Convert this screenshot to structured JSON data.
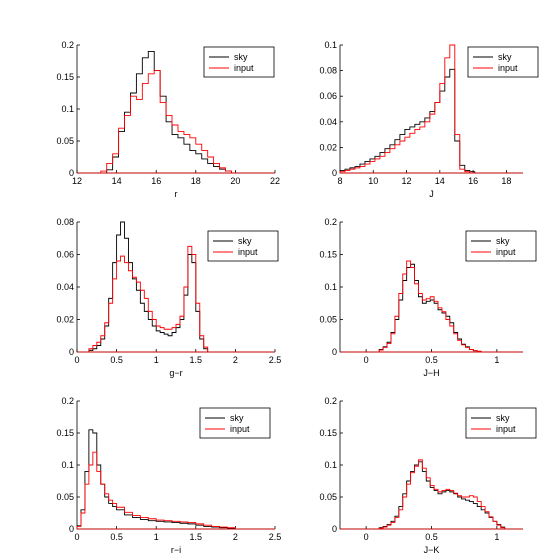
{
  "legend_labels": [
    "sky",
    "input"
  ],
  "colors": {
    "sky": "#000000",
    "input": "#ff0000"
  },
  "chart_data": [
    {
      "type": "line",
      "step": true,
      "xlabel": "r",
      "ylabel": "",
      "xlim": [
        12,
        22
      ],
      "ylim": [
        0,
        0.2
      ],
      "xticks": [
        12,
        14,
        16,
        18,
        20,
        22
      ],
      "xtick_labels": [
        "12",
        "14",
        "16",
        "18",
        "20",
        "22"
      ],
      "yticks": [
        0,
        0.05,
        0.1,
        0.15,
        0.2
      ],
      "ytick_labels": [
        "0",
        "0.05",
        "0.1",
        "0.15",
        "0.2"
      ],
      "legend_position": "top-right",
      "series": [
        {
          "name": "sky",
          "bin_edges": [
            13.5,
            13.8,
            14.1,
            14.4,
            14.7,
            15.0,
            15.3,
            15.6,
            15.9,
            16.2,
            16.5,
            16.8,
            17.1,
            17.4,
            17.7,
            18.0,
            18.3,
            18.6,
            18.9,
            19.2,
            19.5,
            19.8
          ],
          "values": [
            0.005,
            0.025,
            0.065,
            0.095,
            0.125,
            0.155,
            0.18,
            0.19,
            0.16,
            0.12,
            0.08,
            0.06,
            0.055,
            0.045,
            0.035,
            0.03,
            0.022,
            0.015,
            0.01,
            0.006,
            0.003
          ]
        },
        {
          "name": "input",
          "bin_edges": [
            13.2,
            13.5,
            13.8,
            14.1,
            14.4,
            14.7,
            15.0,
            15.3,
            15.6,
            15.9,
            16.2,
            16.5,
            16.8,
            17.1,
            17.4,
            17.7,
            18.0,
            18.3,
            18.6,
            18.9,
            19.2,
            19.5,
            19.8
          ],
          "values": [
            0.003,
            0.015,
            0.03,
            0.07,
            0.09,
            0.12,
            0.115,
            0.14,
            0.155,
            0.16,
            0.11,
            0.09,
            0.075,
            0.065,
            0.06,
            0.055,
            0.045,
            0.035,
            0.025,
            0.015,
            0.008,
            0.003
          ]
        }
      ]
    },
    {
      "type": "line",
      "step": true,
      "xlabel": "J",
      "ylabel": "",
      "xlim": [
        8,
        19
      ],
      "ylim": [
        0,
        0.1
      ],
      "xticks": [
        8,
        10,
        12,
        14,
        16,
        18
      ],
      "xtick_labels": [
        "8",
        "10",
        "12",
        "14",
        "16",
        "18"
      ],
      "yticks": [
        0,
        0.02,
        0.04,
        0.06,
        0.08,
        0.1
      ],
      "ytick_labels": [
        "0",
        "0.02",
        "0.04",
        "0.06",
        "0.08",
        "0.1"
      ],
      "legend_position": "top-right",
      "series": [
        {
          "name": "sky",
          "bin_edges": [
            8.0,
            8.3,
            8.6,
            8.9,
            9.2,
            9.5,
            9.8,
            10.1,
            10.4,
            10.7,
            11.0,
            11.3,
            11.6,
            11.9,
            12.2,
            12.5,
            12.8,
            13.1,
            13.4,
            13.7,
            14.0,
            14.3,
            14.6,
            14.9,
            15.2,
            15.5,
            15.8,
            16.1
          ],
          "values": [
            0.002,
            0.003,
            0.004,
            0.005,
            0.007,
            0.009,
            0.011,
            0.013,
            0.016,
            0.019,
            0.022,
            0.026,
            0.03,
            0.034,
            0.036,
            0.038,
            0.04,
            0.043,
            0.048,
            0.055,
            0.064,
            0.075,
            0.081,
            0.025,
            0.006,
            0.002,
            0.001
          ]
        },
        {
          "name": "input",
          "bin_edges": [
            8.0,
            8.3,
            8.6,
            8.9,
            9.2,
            9.5,
            9.8,
            10.1,
            10.4,
            10.7,
            11.0,
            11.3,
            11.6,
            11.9,
            12.2,
            12.5,
            12.8,
            13.1,
            13.4,
            13.7,
            14.0,
            14.3,
            14.6,
            14.9,
            15.2,
            15.5,
            15.8,
            16.1
          ],
          "values": [
            0.001,
            0.002,
            0.003,
            0.004,
            0.005,
            0.007,
            0.009,
            0.011,
            0.013,
            0.016,
            0.019,
            0.022,
            0.025,
            0.028,
            0.031,
            0.034,
            0.036,
            0.04,
            0.046,
            0.055,
            0.07,
            0.09,
            0.1,
            0.03,
            0.003,
            0.001,
            0.0
          ]
        }
      ]
    },
    {
      "type": "line",
      "step": true,
      "xlabel": "g−r",
      "ylabel": "",
      "xlim": [
        0,
        2.5
      ],
      "ylim": [
        0,
        0.08
      ],
      "xticks": [
        0,
        0.5,
        1,
        1.5,
        2,
        2.5
      ],
      "xtick_labels": [
        "0",
        "0.5",
        "1",
        "1.5",
        "2",
        "2.5"
      ],
      "yticks": [
        0,
        0.02,
        0.04,
        0.06,
        0.08
      ],
      "ytick_labels": [
        "0",
        "0.02",
        "0.04",
        "0.06",
        "0.08"
      ],
      "legend_position": "top-right",
      "series": [
        {
          "name": "sky",
          "bin_edges": [
            0.15,
            0.2,
            0.25,
            0.3,
            0.35,
            0.4,
            0.45,
            0.5,
            0.55,
            0.6,
            0.65,
            0.7,
            0.75,
            0.8,
            0.85,
            0.9,
            0.95,
            1.0,
            1.05,
            1.1,
            1.15,
            1.2,
            1.25,
            1.3,
            1.35,
            1.4,
            1.45,
            1.5,
            1.55,
            1.6,
            1.65
          ],
          "values": [
            0.001,
            0.002,
            0.004,
            0.008,
            0.016,
            0.033,
            0.055,
            0.072,
            0.08,
            0.07,
            0.055,
            0.045,
            0.038,
            0.03,
            0.025,
            0.02,
            0.016,
            0.013,
            0.012,
            0.011,
            0.01,
            0.012,
            0.015,
            0.02,
            0.035,
            0.06,
            0.055,
            0.025,
            0.008,
            0.002
          ]
        },
        {
          "name": "input",
          "bin_edges": [
            0.15,
            0.2,
            0.25,
            0.3,
            0.35,
            0.4,
            0.45,
            0.5,
            0.55,
            0.6,
            0.65,
            0.7,
            0.75,
            0.8,
            0.85,
            0.9,
            0.95,
            1.0,
            1.05,
            1.1,
            1.15,
            1.2,
            1.25,
            1.3,
            1.35,
            1.4,
            1.45,
            1.5,
            1.55,
            1.6,
            1.65
          ],
          "values": [
            0.002,
            0.004,
            0.006,
            0.01,
            0.018,
            0.03,
            0.045,
            0.056,
            0.059,
            0.055,
            0.05,
            0.046,
            0.043,
            0.038,
            0.033,
            0.025,
            0.02,
            0.016,
            0.015,
            0.014,
            0.014,
            0.015,
            0.017,
            0.022,
            0.04,
            0.065,
            0.06,
            0.03,
            0.01,
            0.003
          ]
        }
      ]
    },
    {
      "type": "line",
      "step": true,
      "xlabel": "J−H",
      "ylabel": "",
      "xlim": [
        -0.2,
        1.2
      ],
      "ylim": [
        0,
        0.2
      ],
      "xticks": [
        0,
        0.5,
        1
      ],
      "xtick_labels": [
        "0",
        "0.5",
        "1"
      ],
      "yticks": [
        0,
        0.05,
        0.1,
        0.15,
        0.2
      ],
      "ytick_labels": [
        "0",
        "0.05",
        "0.1",
        "0.15",
        "0.2"
      ],
      "legend_position": "top-right",
      "series": [
        {
          "name": "sky",
          "bin_edges": [
            0.1,
            0.13,
            0.16,
            0.19,
            0.22,
            0.25,
            0.28,
            0.31,
            0.34,
            0.37,
            0.4,
            0.43,
            0.46,
            0.49,
            0.52,
            0.55,
            0.58,
            0.61,
            0.64,
            0.67,
            0.7,
            0.73,
            0.76,
            0.79,
            0.82,
            0.85,
            0.88
          ],
          "values": [
            0.004,
            0.008,
            0.015,
            0.03,
            0.05,
            0.08,
            0.11,
            0.13,
            0.135,
            0.11,
            0.085,
            0.075,
            0.078,
            0.08,
            0.075,
            0.065,
            0.06,
            0.055,
            0.045,
            0.03,
            0.02,
            0.012,
            0.008,
            0.004,
            0.002,
            0.001
          ]
        },
        {
          "name": "input",
          "bin_edges": [
            0.1,
            0.13,
            0.16,
            0.19,
            0.22,
            0.25,
            0.28,
            0.31,
            0.34,
            0.37,
            0.4,
            0.43,
            0.46,
            0.49,
            0.52,
            0.55,
            0.58,
            0.61,
            0.64,
            0.67,
            0.7,
            0.73,
            0.76,
            0.79,
            0.82,
            0.85,
            0.88
          ],
          "values": [
            0.003,
            0.007,
            0.013,
            0.028,
            0.055,
            0.09,
            0.12,
            0.14,
            0.13,
            0.105,
            0.09,
            0.08,
            0.082,
            0.085,
            0.078,
            0.068,
            0.062,
            0.05,
            0.04,
            0.028,
            0.018,
            0.011,
            0.007,
            0.004,
            0.002,
            0.001
          ]
        }
      ]
    },
    {
      "type": "line",
      "step": true,
      "xlabel": "r−i",
      "ylabel": "",
      "xlim": [
        0,
        2.5
      ],
      "ylim": [
        0,
        0.2
      ],
      "xticks": [
        0,
        0.5,
        1,
        1.5,
        2,
        2.5
      ],
      "xtick_labels": [
        "0",
        "0.5",
        "1",
        "1.5",
        "2",
        "2.5"
      ],
      "yticks": [
        0,
        0.05,
        0.1,
        0.15,
        0.2
      ],
      "ytick_labels": [
        "0",
        "0.05",
        "0.1",
        "0.15",
        "0.2"
      ],
      "legend_position": "top-right",
      "series": [
        {
          "name": "sky",
          "bin_edges": [
            0.0,
            0.05,
            0.1,
            0.15,
            0.2,
            0.25,
            0.3,
            0.35,
            0.4,
            0.45,
            0.5,
            0.6,
            0.7,
            0.8,
            0.9,
            1.0,
            1.1,
            1.2,
            1.3,
            1.4,
            1.5,
            1.6,
            1.7,
            1.8,
            1.9,
            2.0
          ],
          "values": [
            0.005,
            0.03,
            0.09,
            0.155,
            0.15,
            0.1,
            0.07,
            0.05,
            0.04,
            0.035,
            0.03,
            0.022,
            0.018,
            0.015,
            0.013,
            0.012,
            0.011,
            0.01,
            0.009,
            0.008,
            0.006,
            0.004,
            0.003,
            0.002,
            0.001
          ]
        },
        {
          "name": "input",
          "bin_edges": [
            0.0,
            0.05,
            0.1,
            0.15,
            0.2,
            0.25,
            0.3,
            0.35,
            0.4,
            0.45,
            0.5,
            0.6,
            0.7,
            0.8,
            0.9,
            1.0,
            1.1,
            1.2,
            1.3,
            1.4,
            1.5,
            1.6,
            1.7,
            1.8,
            1.9,
            2.0
          ],
          "values": [
            0.004,
            0.025,
            0.07,
            0.1,
            0.12,
            0.09,
            0.07,
            0.055,
            0.045,
            0.04,
            0.034,
            0.026,
            0.021,
            0.018,
            0.016,
            0.014,
            0.013,
            0.012,
            0.011,
            0.01,
            0.008,
            0.006,
            0.004,
            0.003,
            0.002
          ]
        }
      ]
    },
    {
      "type": "line",
      "step": true,
      "xlabel": "J−K",
      "ylabel": "",
      "xlim": [
        -0.2,
        1.2
      ],
      "ylim": [
        0,
        0.2
      ],
      "xticks": [
        0,
        0.5,
        1
      ],
      "xtick_labels": [
        "0",
        "0.5",
        "1"
      ],
      "yticks": [
        0,
        0.05,
        0.1,
        0.15,
        0.2
      ],
      "ytick_labels": [
        "0",
        "0.05",
        "0.1",
        "0.15",
        "0.2"
      ],
      "legend_position": "top-right",
      "series": [
        {
          "name": "sky",
          "bin_edges": [
            0.1,
            0.13,
            0.16,
            0.19,
            0.22,
            0.25,
            0.28,
            0.31,
            0.34,
            0.37,
            0.4,
            0.43,
            0.46,
            0.49,
            0.52,
            0.55,
            0.58,
            0.61,
            0.64,
            0.67,
            0.7,
            0.73,
            0.76,
            0.79,
            0.82,
            0.85,
            0.88,
            0.91,
            0.94,
            0.97,
            1.0,
            1.03,
            1.06
          ],
          "values": [
            0.002,
            0.004,
            0.007,
            0.012,
            0.02,
            0.035,
            0.055,
            0.075,
            0.09,
            0.1,
            0.105,
            0.09,
            0.075,
            0.065,
            0.06,
            0.055,
            0.058,
            0.06,
            0.058,
            0.055,
            0.05,
            0.047,
            0.045,
            0.043,
            0.04,
            0.035,
            0.03,
            0.025,
            0.018,
            0.012,
            0.007,
            0.003
          ]
        },
        {
          "name": "input",
          "bin_edges": [
            0.1,
            0.13,
            0.16,
            0.19,
            0.22,
            0.25,
            0.28,
            0.31,
            0.34,
            0.37,
            0.4,
            0.43,
            0.46,
            0.49,
            0.52,
            0.55,
            0.58,
            0.61,
            0.64,
            0.67,
            0.7,
            0.73,
            0.76,
            0.79,
            0.82,
            0.85,
            0.88,
            0.91,
            0.94,
            0.97,
            1.0,
            1.03,
            1.06
          ],
          "values": [
            0.001,
            0.003,
            0.006,
            0.01,
            0.018,
            0.03,
            0.05,
            0.07,
            0.088,
            0.098,
            0.108,
            0.095,
            0.08,
            0.068,
            0.062,
            0.058,
            0.06,
            0.062,
            0.06,
            0.056,
            0.052,
            0.05,
            0.05,
            0.052,
            0.05,
            0.043,
            0.035,
            0.027,
            0.019,
            0.012,
            0.006,
            0.002
          ]
        }
      ]
    }
  ]
}
